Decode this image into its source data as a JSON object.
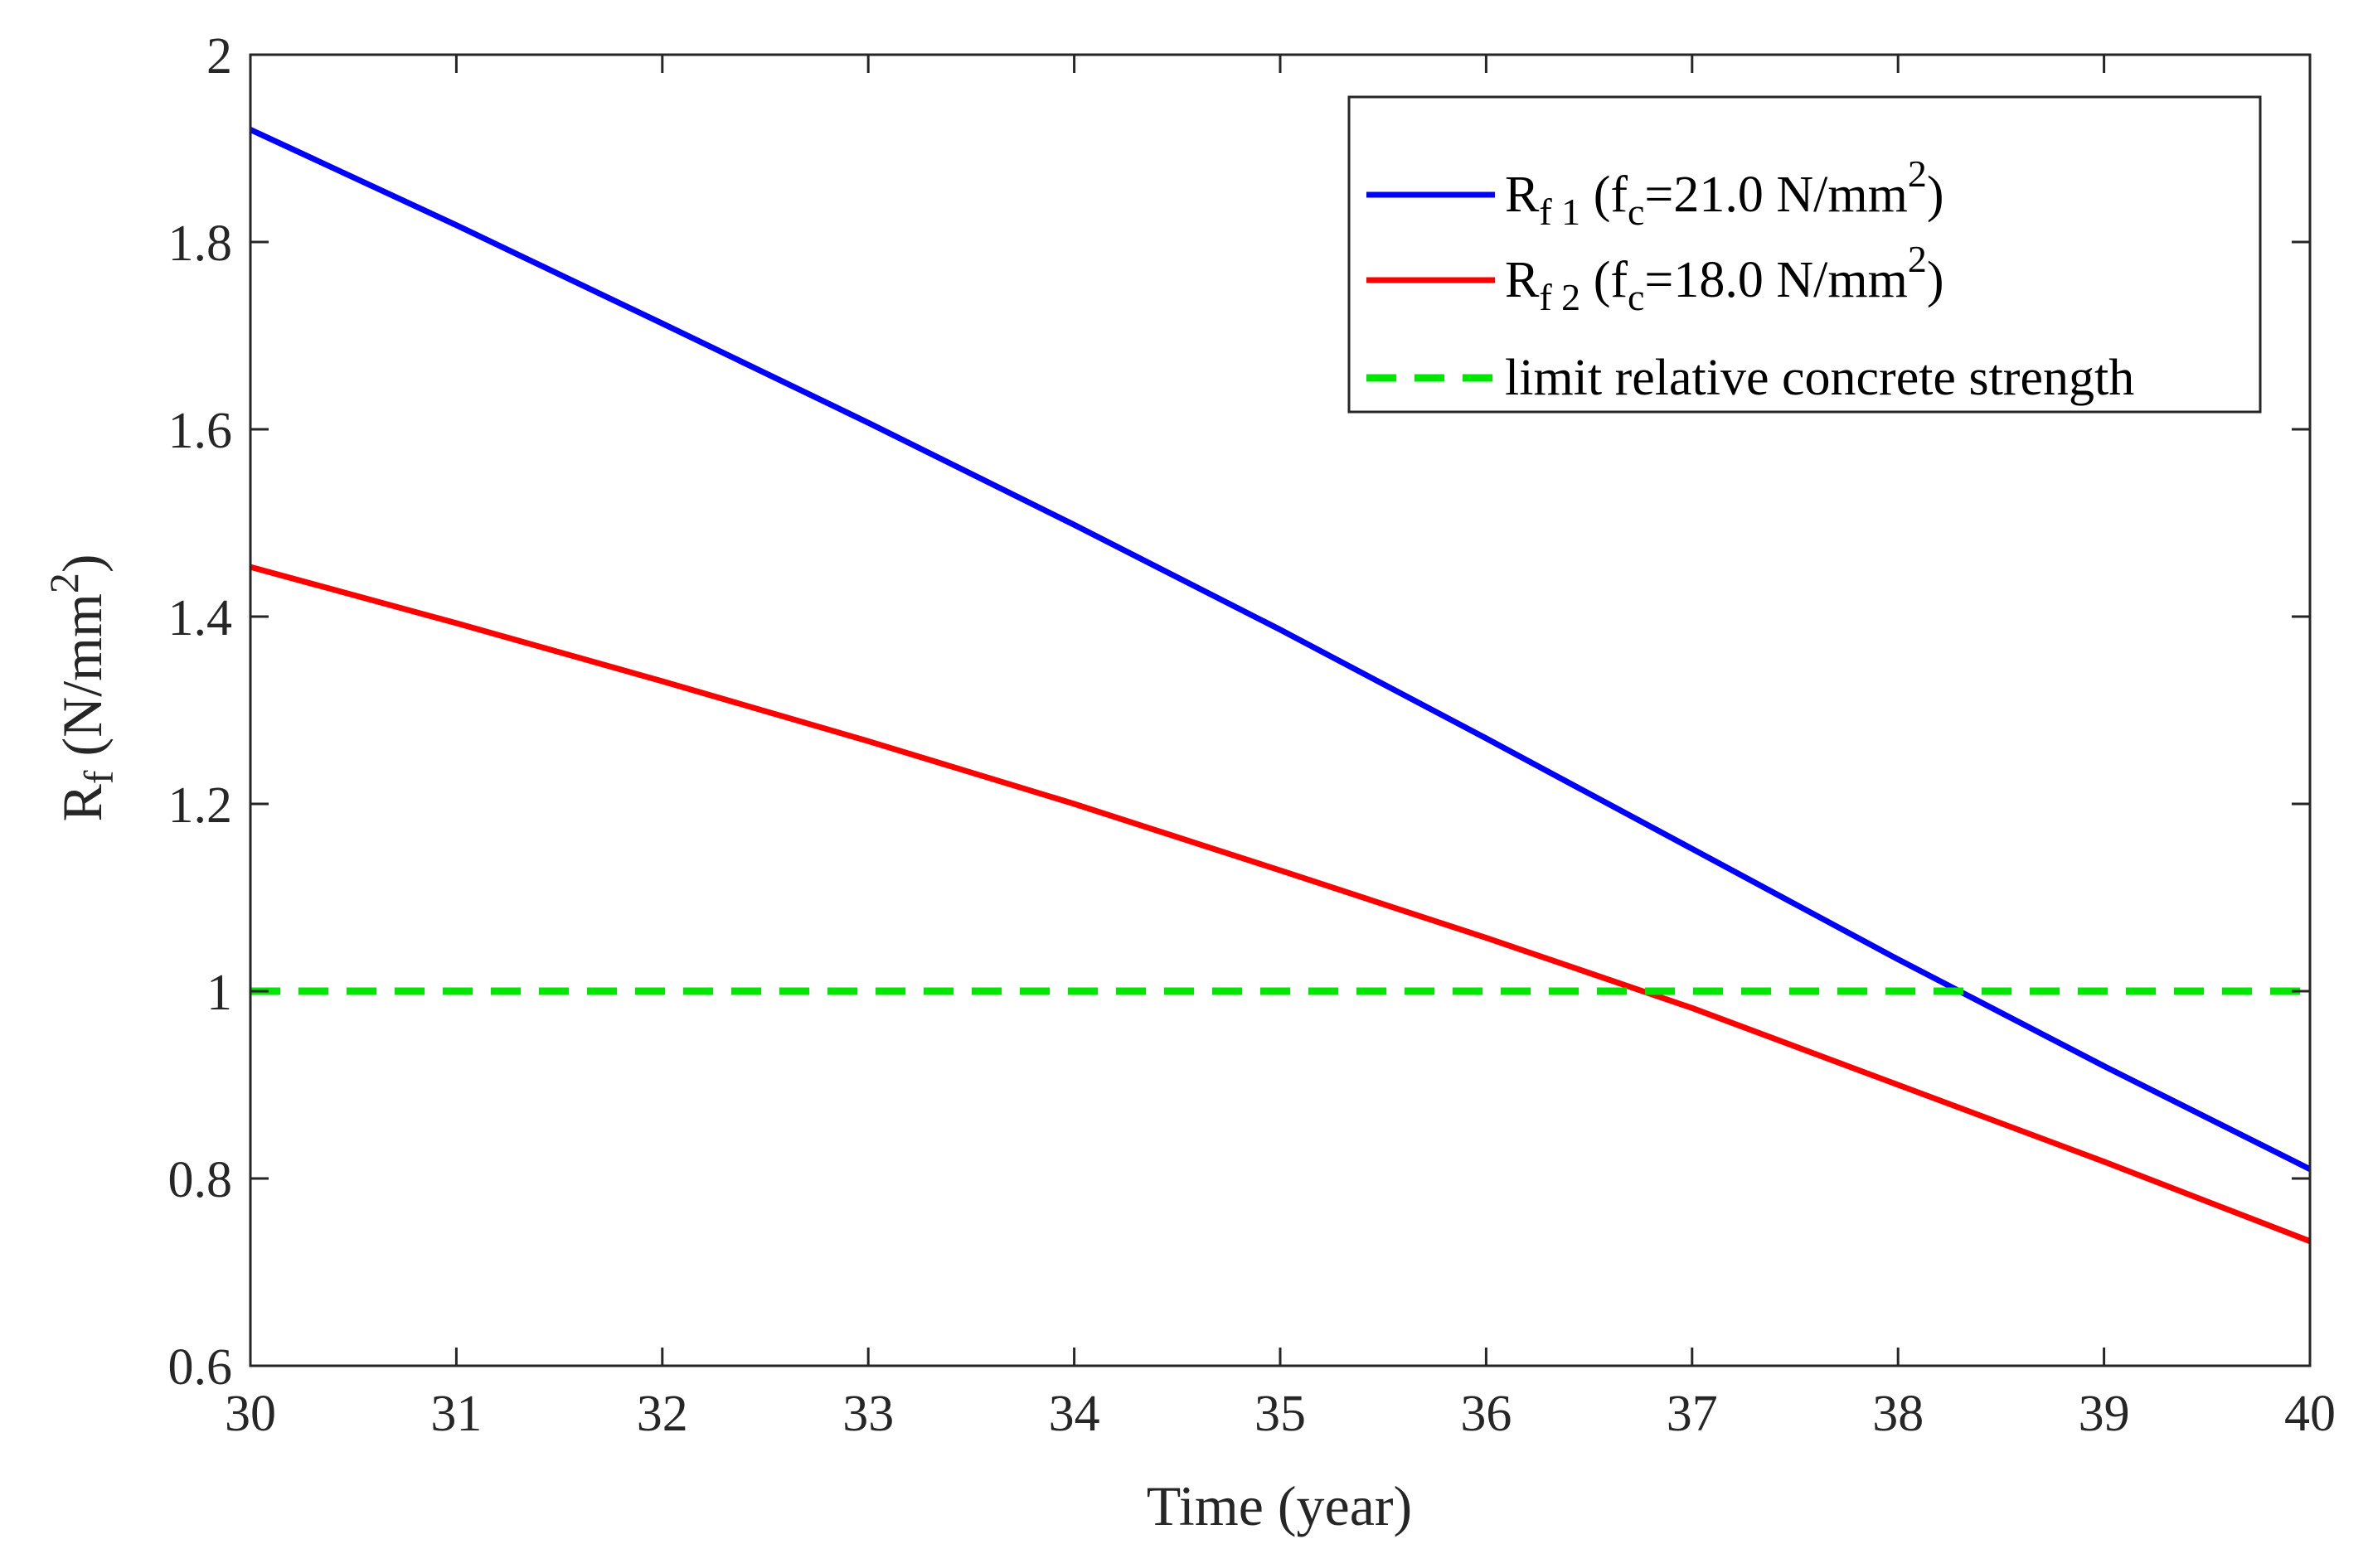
{
  "chart_data": {
    "type": "line",
    "title": "",
    "xlabel": "Time (year)",
    "ylabel": {
      "main": "R",
      "sub": "f",
      "unit_open": " (N/mm",
      "unit_sup": "2",
      "unit_close": ")"
    },
    "xlim": [
      30,
      40
    ],
    "ylim": [
      0.6,
      2.0
    ],
    "x_ticks": [
      30,
      31,
      32,
      33,
      34,
      35,
      36,
      37,
      38,
      39,
      40
    ],
    "x_tick_labels": [
      "30",
      "31",
      "32",
      "33",
      "34",
      "35",
      "36",
      "37",
      "38",
      "39",
      "40"
    ],
    "y_ticks": [
      0.6,
      0.8,
      1.0,
      1.2,
      1.4,
      1.6,
      1.8,
      2.0
    ],
    "y_tick_labels": [
      "0.6",
      "0.8",
      "1",
      "1.2",
      "1.4",
      "1.6",
      "1.8",
      "2"
    ],
    "grid": false,
    "legend_position": "top-right",
    "x": [
      30,
      31,
      32,
      33,
      34,
      35,
      36,
      37,
      38,
      39,
      40
    ],
    "series": [
      {
        "name": "R_f1 (f_c=21.0 N/mm^2)",
        "legend": {
          "main": "R",
          "sub": "f 1",
          "open": " (f",
          "csub": "c",
          "value": "=21.0 N/mm",
          "sup": "2",
          "close": ")"
        },
        "color": "#0000ff",
        "style": "solid",
        "values": [
          1.92,
          1.818,
          1.713,
          1.607,
          1.498,
          1.386,
          1.27,
          1.152,
          1.034,
          0.92,
          0.81
        ]
      },
      {
        "name": "R_f2 (f_c=18.0 N/mm^2)",
        "legend": {
          "main": "R",
          "sub": "f 2",
          "open": " (f",
          "csub": "c",
          "value": "=18.0 N/mm",
          "sup": "2",
          "close": ")"
        },
        "color": "#ff0000",
        "style": "solid",
        "values": [
          1.453,
          1.393,
          1.331,
          1.267,
          1.2,
          1.129,
          1.057,
          0.982,
          0.9,
          0.818,
          0.733
        ]
      },
      {
        "name": "limit relative concrete strength",
        "legend": {
          "text": "limit relative concrete strength"
        },
        "color": "#00e600",
        "style": "dashed",
        "values": [
          1.0,
          1.0,
          1.0,
          1.0,
          1.0,
          1.0,
          1.0,
          1.0,
          1.0,
          1.0,
          1.0
        ]
      }
    ]
  }
}
